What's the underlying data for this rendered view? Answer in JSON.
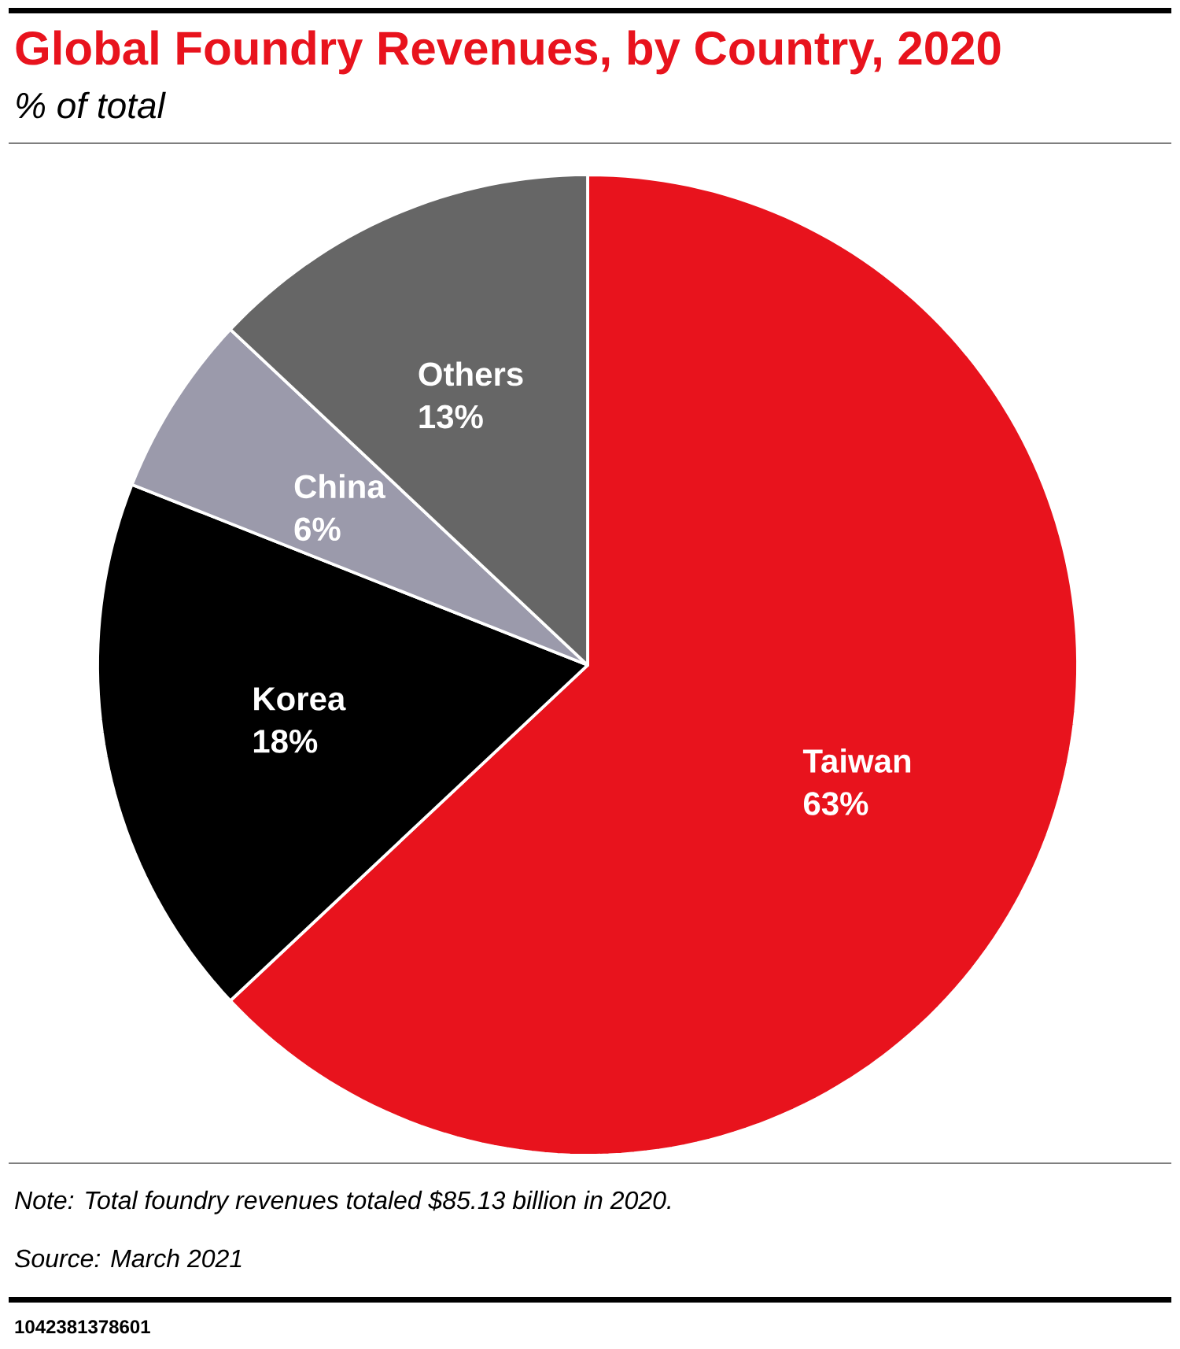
{
  "chart_data": {
    "type": "pie",
    "title": "Global Foundry Revenues, by Country, 2020",
    "subtitle": "% of total",
    "categories": [
      "Taiwan",
      "Korea",
      "China",
      "Others"
    ],
    "values": [
      63,
      18,
      6,
      13
    ],
    "colors": [
      "#e8131d",
      "#000000",
      "#9b9aab",
      "#666666"
    ],
    "value_labels": [
      "63%",
      "18%",
      "6%",
      "13%"
    ],
    "annotations": [
      "Note: Total foundry revenues totaled $85.13 billion in 2020.",
      "Source: March 2021",
      "1042381378601"
    ]
  }
}
